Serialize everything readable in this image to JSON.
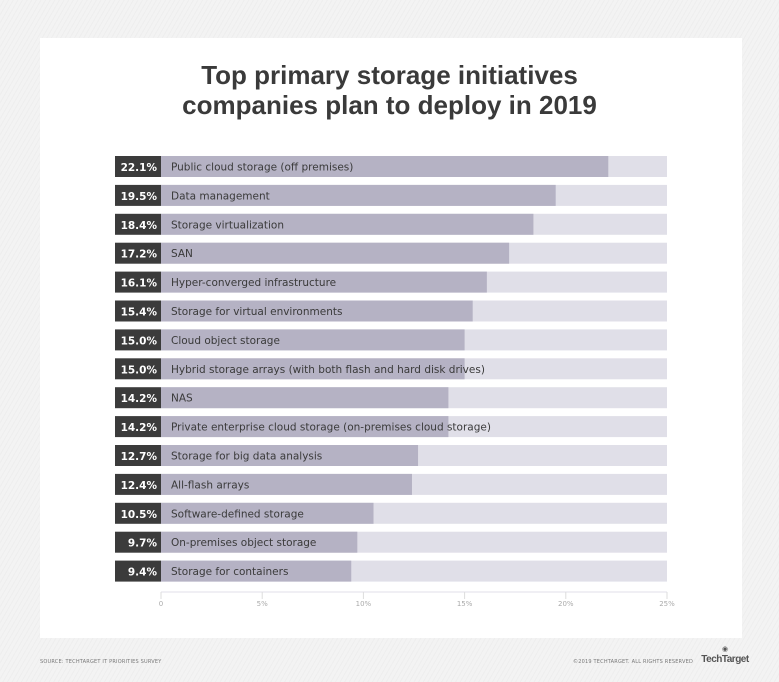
{
  "chart_data": {
    "type": "bar",
    "orientation": "horizontal",
    "title": "Top primary storage initiatives companies plan to deploy in 2019",
    "title_lines": [
      "Top primary storage initiatives",
      "companies plan to deploy in 2019"
    ],
    "categories": [
      "Public cloud storage (off premises)",
      "Data management",
      "Storage virtualization",
      "SAN",
      "Hyper-converged infrastructure",
      "Storage for virtual environments",
      "Cloud object storage",
      "Hybrid storage arrays (with both flash and hard disk drives)",
      "NAS",
      "Private enterprise cloud storage (on-premises cloud storage)",
      "Storage for big data analysis",
      "All-flash arrays",
      "Software-defined storage",
      "On-premises object storage",
      "Storage for containers"
    ],
    "values": [
      22.1,
      19.5,
      18.4,
      17.2,
      16.1,
      15.4,
      15.0,
      15.0,
      14.2,
      14.2,
      12.7,
      12.4,
      10.5,
      9.7,
      9.4
    ],
    "value_labels": [
      "22.1%",
      "19.5%",
      "18.4%",
      "17.2%",
      "16.1%",
      "15.4%",
      "15.0%",
      "15.0%",
      "14.2%",
      "14.2%",
      "12.7%",
      "12.4%",
      "10.5%",
      "9.7%",
      "9.4%"
    ],
    "xlim": [
      0,
      25
    ],
    "xticks": [
      0,
      5,
      10,
      15,
      20,
      25
    ],
    "xtick_labels": [
      "0",
      "5%",
      "10%",
      "15%",
      "20%",
      "25%"
    ],
    "xlabel": "",
    "ylabel": "",
    "grid": false,
    "colors": {
      "bar": "#b5b2c4",
      "track": "#e0dfe8",
      "label_box": "#3b3b3b",
      "text": "#3a3a3a"
    }
  },
  "footer": {
    "source": "SOURCE: TECHTARGET IT PRIORITIES SURVEY",
    "copyright": "©2019 TECHTARGET. ALL RIGHTS RESERVED",
    "logo": "TechTarget"
  }
}
